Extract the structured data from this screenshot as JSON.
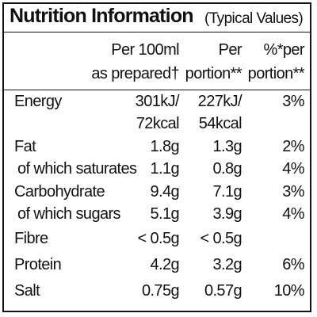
{
  "header": {
    "title": "Nutrition Information",
    "subtitle": "(Typical Values)"
  },
  "table": {
    "columns": [
      [
        "Per 100ml",
        "as prepared†"
      ],
      [
        "Per",
        "portion**"
      ],
      [
        "%*per",
        "portion**"
      ]
    ],
    "rows": [
      {
        "label": "Energy",
        "cells": [
          [
            "301kJ/",
            "72kcal"
          ],
          [
            "227kJ/",
            "54kcal"
          ],
          [
            "3%"
          ]
        ]
      },
      {
        "label": "Fat",
        "cells": [
          [
            "1.8g"
          ],
          [
            "1.3g"
          ],
          [
            "2%"
          ]
        ]
      },
      {
        "label": "of which saturates",
        "sub": true,
        "cells": [
          [
            "1.1g"
          ],
          [
            "0.8g"
          ],
          [
            "4%"
          ]
        ]
      },
      {
        "label": "Carbohydrate",
        "cells": [
          [
            "9.4g"
          ],
          [
            "7.1g"
          ],
          [
            "3%"
          ]
        ]
      },
      {
        "label": "of which sugars",
        "sub": true,
        "cells": [
          [
            "5.1g"
          ],
          [
            "3.9g"
          ],
          [
            "4%"
          ]
        ]
      },
      {
        "label": "Fibre",
        "cells": [
          [
            "< 0.5g"
          ],
          [
            "< 0.5g"
          ]
        ]
      },
      {
        "label": "Protein",
        "cells": [
          [
            "4.2g"
          ],
          [
            "3.2g"
          ],
          [
            "6%"
          ]
        ]
      },
      {
        "label": "Salt",
        "cells": [
          [
            "0.75g"
          ],
          [
            "0.57g"
          ],
          [
            "10%"
          ]
        ]
      }
    ]
  }
}
